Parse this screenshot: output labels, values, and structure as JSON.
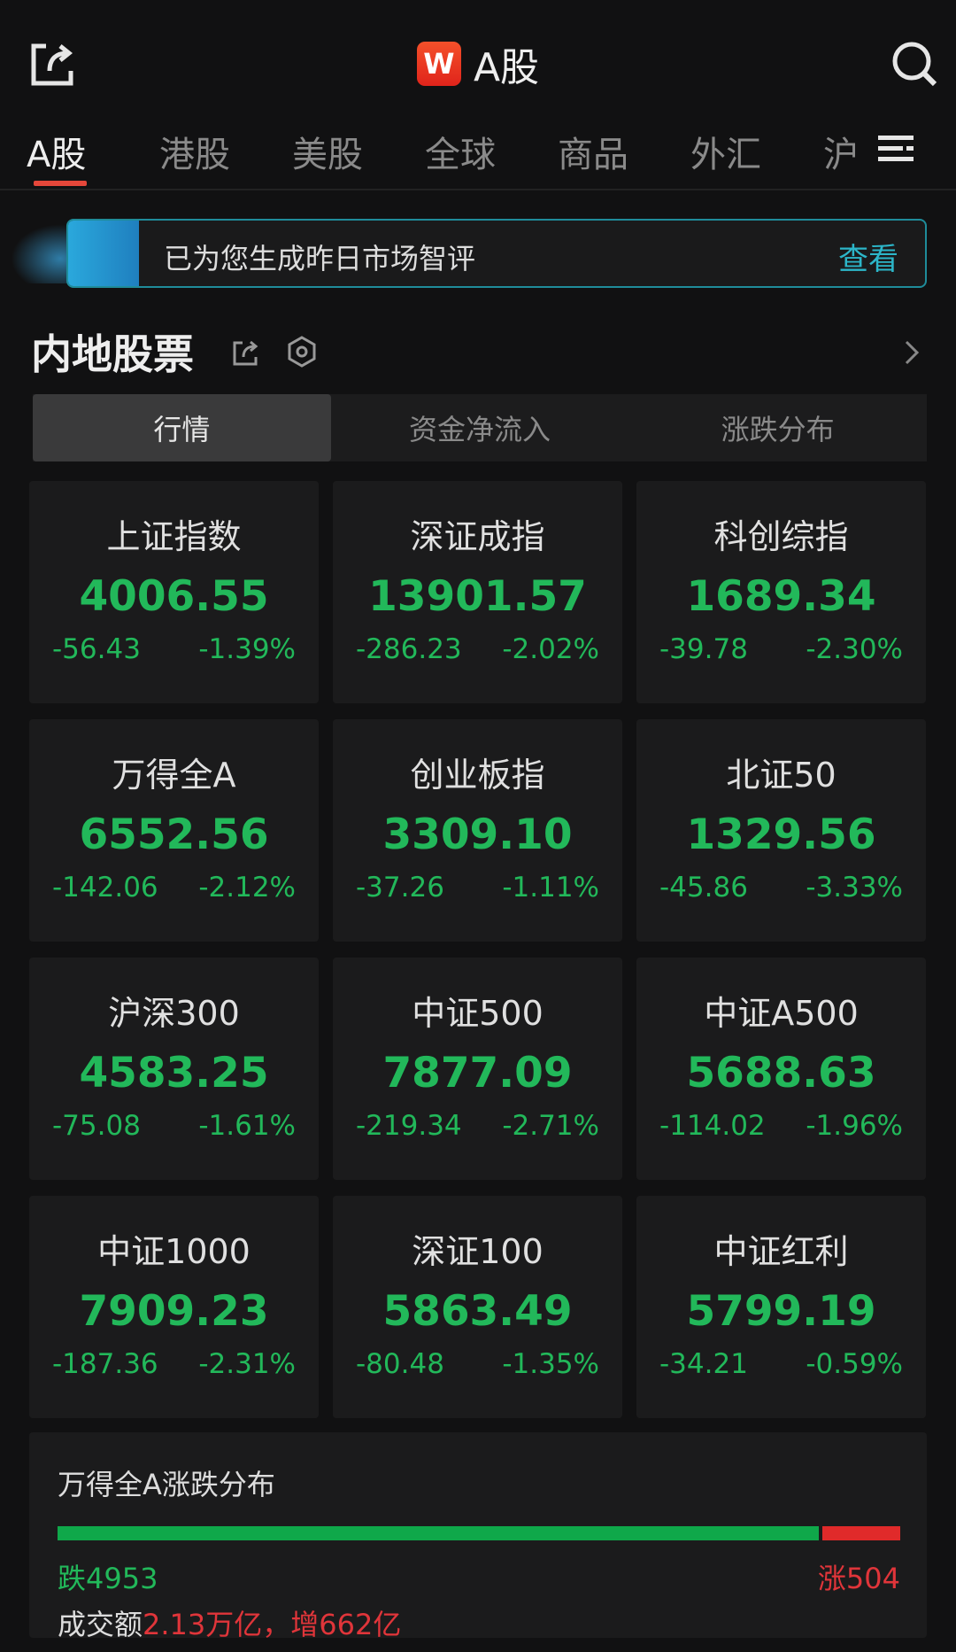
{
  "header": {
    "title": "A股",
    "logo_text": "W",
    "icons": [
      "share-icon",
      "search-icon",
      "menu-icon"
    ]
  },
  "tabs": [
    "A股",
    "港股",
    "美股",
    "全球",
    "商品",
    "外汇",
    "沪"
  ],
  "banner": {
    "text": "已为您生成昨日市场智评",
    "action": "查看"
  },
  "section": {
    "title": "内地股票",
    "segments": [
      "行情",
      "资金净流入",
      "涨跌分布"
    ]
  },
  "indices": [
    {
      "name": "上证指数",
      "value": "4006.55",
      "change": "-56.43",
      "pct": "-1.39%"
    },
    {
      "name": "深证成指",
      "value": "13901.57",
      "change": "-286.23",
      "pct": "-2.02%"
    },
    {
      "name": "科创综指",
      "value": "1689.34",
      "change": "-39.78",
      "pct": "-2.30%"
    },
    {
      "name": "万得全A",
      "value": "6552.56",
      "change": "-142.06",
      "pct": "-2.12%"
    },
    {
      "name": "创业板指",
      "value": "3309.10",
      "change": "-37.26",
      "pct": "-1.11%"
    },
    {
      "name": "北证50",
      "value": "1329.56",
      "change": "-45.86",
      "pct": "-3.33%"
    },
    {
      "name": "沪深300",
      "value": "4583.25",
      "change": "-75.08",
      "pct": "-1.61%"
    },
    {
      "name": "中证500",
      "value": "7877.09",
      "change": "-219.34",
      "pct": "-2.71%"
    },
    {
      "name": "中证A500",
      "value": "5688.63",
      "change": "-114.02",
      "pct": "-1.96%"
    },
    {
      "name": "中证1000",
      "value": "7909.23",
      "change": "-187.36",
      "pct": "-2.31%"
    },
    {
      "name": "深证100",
      "value": "5863.49",
      "change": "-80.48",
      "pct": "-1.35%"
    },
    {
      "name": "中证红利",
      "value": "5799.19",
      "change": "-34.21",
      "pct": "-0.59%"
    }
  ],
  "distribution": {
    "title": "万得全A涨跌分布",
    "down_label": "跌4953",
    "up_label": "涨504",
    "down": 4953,
    "up": 504,
    "turnover_label": "成交额",
    "turnover_value": "2.13万亿，增662亿"
  },
  "colors": {
    "down": "#22b85a",
    "up": "#e0353a",
    "accent": "#e5473a"
  }
}
